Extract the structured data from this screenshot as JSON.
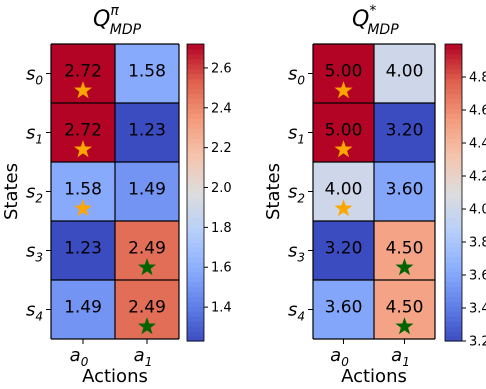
{
  "chart_data": [
    {
      "type": "heatmap",
      "title_base": "Q",
      "title_sup": "π",
      "title_sub": "MDP",
      "xlabel": "Actions",
      "ylabel": "States",
      "x_categories": [
        "a",
        "a"
      ],
      "x_subscripts": [
        "0",
        "1"
      ],
      "y_categories": [
        "s",
        "s",
        "s",
        "s",
        "s"
      ],
      "y_subscripts": [
        "0",
        "1",
        "2",
        "3",
        "4"
      ],
      "values": [
        [
          2.72,
          1.58
        ],
        [
          2.72,
          1.23
        ],
        [
          1.58,
          1.49
        ],
        [
          1.23,
          2.49
        ],
        [
          1.49,
          2.49
        ]
      ],
      "cell_labels": [
        [
          "2.72",
          "1.58"
        ],
        [
          "2.72",
          "1.23"
        ],
        [
          "1.58",
          "1.49"
        ],
        [
          "1.23",
          "2.49"
        ],
        [
          "1.49",
          "2.49"
        ]
      ],
      "stars": [
        {
          "row": 0,
          "col": 0,
          "color": "#ffa500"
        },
        {
          "row": 1,
          "col": 0,
          "color": "#ffa500"
        },
        {
          "row": 2,
          "col": 0,
          "color": "#ffa500"
        },
        {
          "row": 3,
          "col": 1,
          "color": "#006400"
        },
        {
          "row": 4,
          "col": 1,
          "color": "#006400"
        }
      ],
      "colormap": "coolwarm",
      "vmin": 1.23,
      "vmax": 2.72,
      "colorbar_ticks": [
        1.4,
        1.6,
        1.8,
        2.0,
        2.2,
        2.4,
        2.6
      ],
      "colorbar_tick_labels": [
        "1.4",
        "1.6",
        "1.8",
        "2.0",
        "2.2",
        "2.4",
        "2.6"
      ]
    },
    {
      "type": "heatmap",
      "title_base": "Q",
      "title_sup": "*",
      "title_sub": "MDP",
      "xlabel": "Actions",
      "ylabel": "States",
      "x_categories": [
        "a",
        "a"
      ],
      "x_subscripts": [
        "0",
        "1"
      ],
      "y_categories": [
        "s",
        "s",
        "s",
        "s",
        "s"
      ],
      "y_subscripts": [
        "0",
        "1",
        "2",
        "3",
        "4"
      ],
      "values": [
        [
          5.0,
          4.0
        ],
        [
          5.0,
          3.2
        ],
        [
          4.0,
          3.6
        ],
        [
          3.2,
          4.5
        ],
        [
          3.6,
          4.5
        ]
      ],
      "cell_labels": [
        [
          "5.00",
          "4.00"
        ],
        [
          "5.00",
          "3.20"
        ],
        [
          "4.00",
          "3.60"
        ],
        [
          "3.20",
          "4.50"
        ],
        [
          "3.60",
          "4.50"
        ]
      ],
      "stars": [
        {
          "row": 0,
          "col": 0,
          "color": "#ffa500"
        },
        {
          "row": 1,
          "col": 0,
          "color": "#ffa500"
        },
        {
          "row": 2,
          "col": 0,
          "color": "#ffa500"
        },
        {
          "row": 3,
          "col": 1,
          "color": "#006400"
        },
        {
          "row": 4,
          "col": 1,
          "color": "#006400"
        }
      ],
      "colormap": "coolwarm",
      "vmin": 3.2,
      "vmax": 5.0,
      "colorbar_ticks": [
        3.2,
        3.4,
        3.6,
        3.8,
        4.0,
        4.2,
        4.4,
        4.6,
        4.8
      ],
      "colorbar_tick_labels": [
        "3.2",
        "3.4",
        "3.6",
        "3.8",
        "4.0",
        "4.2",
        "4.4",
        "4.6",
        "4.8"
      ]
    }
  ]
}
